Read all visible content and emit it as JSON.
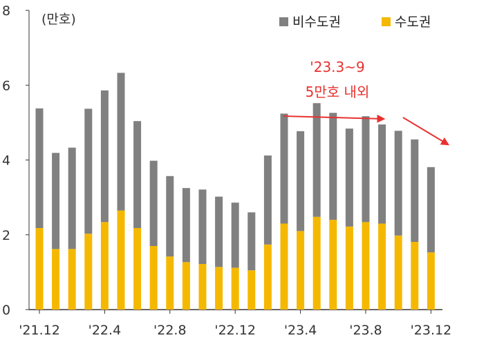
{
  "chart_data": {
    "type": "bar",
    "stacked": true,
    "unit_label": "(만호)",
    "categories": [
      "'21.12",
      "'22.1",
      "'22.2",
      "'22.3",
      "'22.4",
      "'22.5",
      "'22.6",
      "'22.7",
      "'22.8",
      "'22.9",
      "'22.10",
      "'22.11",
      "'22.12",
      "'23.1",
      "'23.2",
      "'23.3",
      "'23.4",
      "'23.5",
      "'23.6",
      "'23.7",
      "'23.8",
      "'23.9",
      "'23.10",
      "'23.11",
      "'23.12"
    ],
    "x_tick_labels": [
      "'21.12",
      "'22.4",
      "'22.8",
      "'22.12",
      "'23.4",
      "'23.8",
      "'23.12"
    ],
    "y_ticks": [
      "0",
      "2",
      "4",
      "6",
      "8"
    ],
    "ylim": [
      0,
      8
    ],
    "series": [
      {
        "name": "수도권",
        "color": "#f5b800",
        "values": [
          2.18,
          1.62,
          1.62,
          2.03,
          2.34,
          2.65,
          2.18,
          1.7,
          1.42,
          1.27,
          1.22,
          1.14,
          1.12,
          1.05,
          1.74,
          2.3,
          2.1,
          2.48,
          2.4,
          2.22,
          2.34,
          2.3,
          1.98,
          1.81,
          1.53
        ]
      },
      {
        "name": "비수도권",
        "color": "#808080",
        "values": [
          3.2,
          2.57,
          2.71,
          3.34,
          3.52,
          3.68,
          2.86,
          2.28,
          2.15,
          1.98,
          1.99,
          1.88,
          1.74,
          1.55,
          2.38,
          2.94,
          2.67,
          3.04,
          2.86,
          2.62,
          2.83,
          2.65,
          2.8,
          2.74,
          2.28
        ]
      }
    ],
    "annotation": {
      "line1": "'23.3~9",
      "line2": "5만호 내외",
      "color": "#e8312f"
    },
    "legend_position": "top-right",
    "grid": false
  }
}
